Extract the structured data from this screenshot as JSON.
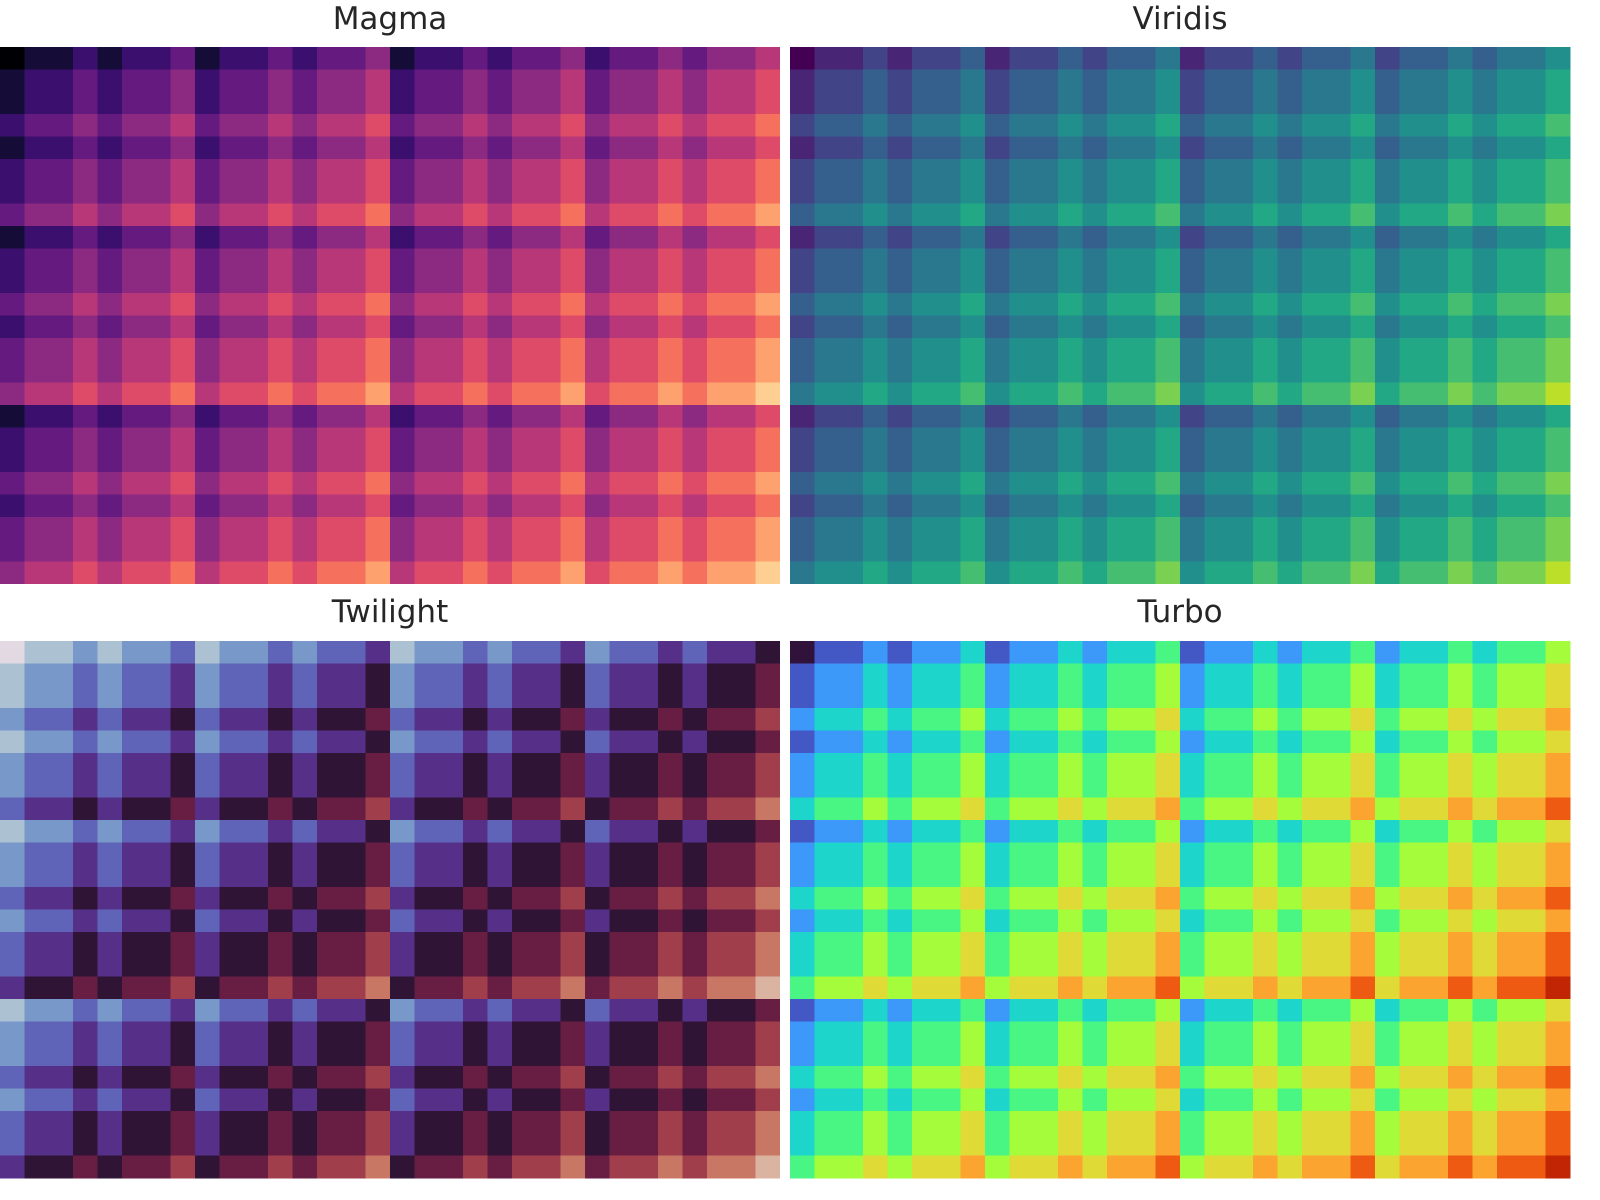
{
  "chart_data": [
    {
      "type": "heatmap",
      "title": "Magma",
      "colormap": "magma",
      "grid_size": [
        32,
        24
      ],
      "value_rule": "popcount(col) + popcount(row)",
      "value_range": [
        0,
        10
      ],
      "xlabel": "",
      "ylabel": "",
      "ticks": "none",
      "grid": false
    },
    {
      "type": "heatmap",
      "title": "Viridis",
      "colormap": "viridis",
      "grid_size": [
        32,
        24
      ],
      "value_rule": "popcount(col) + popcount(row)",
      "value_range": [
        0,
        10
      ],
      "xlabel": "",
      "ylabel": "",
      "ticks": "none",
      "grid": false
    },
    {
      "type": "heatmap",
      "title": "Twilight",
      "colormap": "twilight",
      "grid_size": [
        32,
        24
      ],
      "value_rule": "popcount(col) + popcount(row)",
      "value_range": [
        0,
        10
      ],
      "xlabel": "",
      "ylabel": "",
      "ticks": "none",
      "grid": false
    },
    {
      "type": "heatmap",
      "title": "Turbo",
      "colormap": "turbo",
      "grid_size": [
        32,
        24
      ],
      "value_rule": "popcount(col) + popcount(row)",
      "value_range": [
        0,
        10
      ],
      "xlabel": "",
      "ylabel": "",
      "ticks": "none",
      "grid": false
    }
  ],
  "colormaps": {
    "magma": [
      "#000004",
      "#0c0826",
      "#221150",
      "#400f74",
      "#5f187f",
      "#7b2382",
      "#982d80",
      "#b73779",
      "#d3436e",
      "#eb5760",
      "#f8765c",
      "#fd9a6a",
      "#febb81",
      "#fddc9e",
      "#fcfdbf"
    ],
    "viridis": [
      "#440154",
      "#481a6c",
      "#472f7d",
      "#414487",
      "#39568c",
      "#31688e",
      "#2a788e",
      "#23888e",
      "#1f988b",
      "#22a884",
      "#35b779",
      "#54c568",
      "#7ad151",
      "#a5db36",
      "#d2e21b",
      "#fde725"
    ],
    "twilight": [
      "#e2d9e2",
      "#c9d0d9",
      "#a5bfd2",
      "#85a9cb",
      "#6e8dc6",
      "#6270bf",
      "#5e52b0",
      "#59358f",
      "#4b1d6b",
      "#2f1436",
      "#4b1a3a",
      "#6e1f44",
      "#8f2d4a",
      "#ad4a4e",
      "#c3695a",
      "#d08c75",
      "#d9ad98",
      "#e0ccc3",
      "#e2d9e2"
    ],
    "turbo": [
      "#30123b",
      "#4145ab",
      "#4675ed",
      "#39a2fc",
      "#1bcfd4",
      "#24eca6",
      "#61fc6c",
      "#a4fc3b",
      "#d1e834",
      "#f3c63a",
      "#fe9b2d",
      "#f36315",
      "#d93806",
      "#b11901",
      "#7a0403"
    ]
  }
}
